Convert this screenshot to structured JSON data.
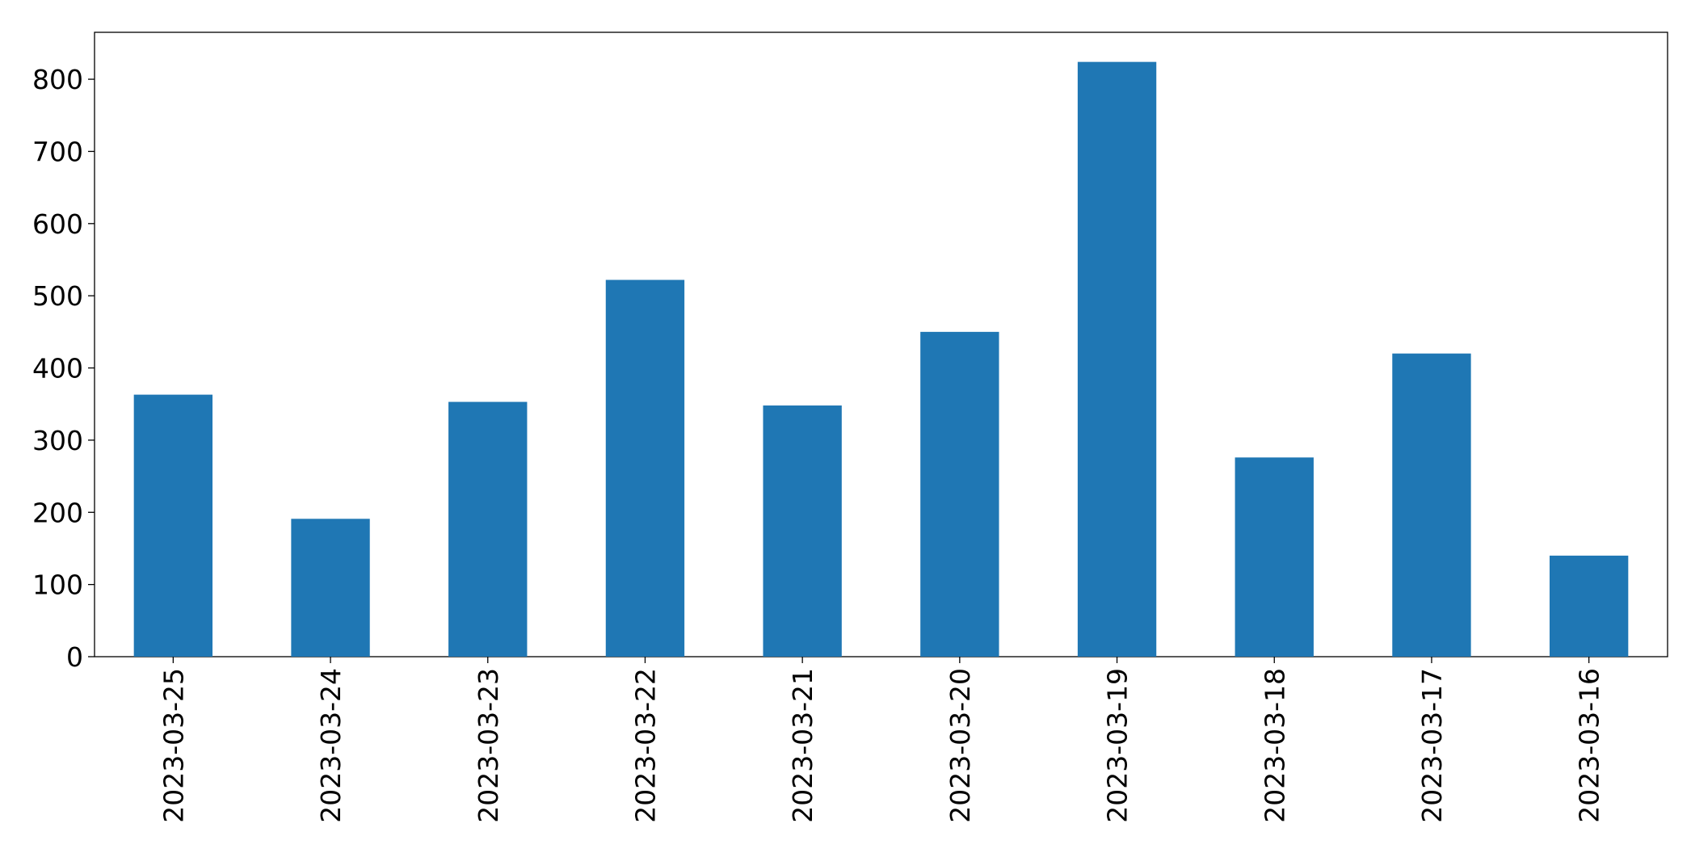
{
  "chart_data": {
    "type": "bar",
    "categories": [
      "2023-03-25",
      "2023-03-24",
      "2023-03-23",
      "2023-03-22",
      "2023-03-21",
      "2023-03-20",
      "2023-03-19",
      "2023-03-18",
      "2023-03-17",
      "2023-03-16"
    ],
    "values": [
      363,
      191,
      353,
      522,
      348,
      450,
      824,
      276,
      420,
      140
    ],
    "color": "#1f77b4",
    "ylim": [
      0,
      865
    ],
    "yticks": [
      0,
      100,
      200,
      300,
      400,
      500,
      600,
      700,
      800
    ],
    "grid": false
  }
}
